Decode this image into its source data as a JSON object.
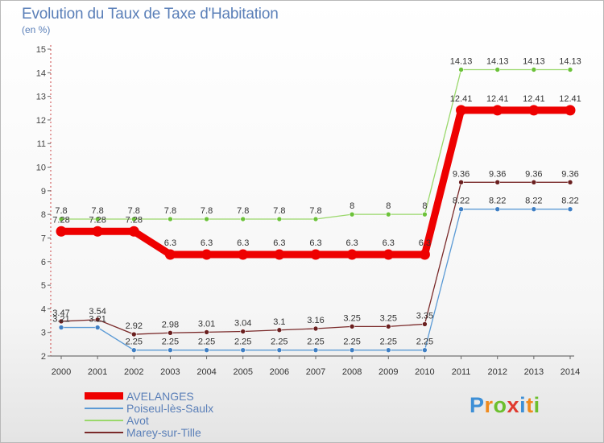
{
  "header": {
    "title": "Evolution du Taux de Taxe d'Habitation",
    "subtitle": "(en %)"
  },
  "logo": {
    "text": "Proxiti",
    "letters": [
      {
        "ch": "P",
        "color": "#3d8fd6"
      },
      {
        "ch": "r",
        "color": "#f08a1c"
      },
      {
        "ch": "o",
        "color": "#6cbf2e"
      },
      {
        "ch": "x",
        "color": "#e03a2f"
      },
      {
        "ch": "i",
        "color": "#3d8fd6"
      },
      {
        "ch": "t",
        "color": "#f08a1c"
      },
      {
        "ch": "i",
        "color": "#6cbf2e"
      }
    ]
  },
  "chart_data": {
    "type": "line",
    "x": [
      2000,
      2001,
      2002,
      2003,
      2004,
      2005,
      2006,
      2007,
      2008,
      2009,
      2010,
      2011,
      2012,
      2013,
      2014
    ],
    "ylim": [
      2,
      15
    ],
    "yticks": [
      2,
      3,
      4,
      5,
      6,
      7,
      8,
      9,
      10,
      11,
      12,
      13,
      14,
      15
    ],
    "grid": false,
    "legend_position": "bottom-left",
    "series": [
      {
        "name": "AVELANGES",
        "color": "#ee0000",
        "emphasis": true,
        "values": [
          7.28,
          7.28,
          7.28,
          6.3,
          6.3,
          6.3,
          6.3,
          6.3,
          6.3,
          6.3,
          6.3,
          12.41,
          12.41,
          12.41,
          12.41
        ],
        "labels": [
          "7.28",
          "7.28",
          "7.28",
          "6.3",
          "6.3",
          "6.3",
          "6.3",
          "6.3",
          "6.3",
          "6.3",
          "6.3",
          "12.41",
          "12.41",
          "12.41",
          "12.41"
        ]
      },
      {
        "name": "Poiseul-lès-Saulx",
        "color": "#5b9ad5",
        "marker_color": "#3f7fc4",
        "values": [
          3.21,
          3.21,
          2.25,
          2.25,
          2.25,
          2.25,
          2.25,
          2.25,
          2.25,
          2.25,
          2.25,
          8.22,
          8.22,
          8.22,
          8.22
        ],
        "labels": [
          "3.21",
          "3.21",
          "2.25",
          "2.25",
          "2.25",
          "2.25",
          "2.25",
          "2.25",
          "2.25",
          "2.25",
          "2.25",
          "8.22",
          "8.22",
          "8.22",
          "8.22"
        ]
      },
      {
        "name": "Avot",
        "color": "#9ad86b",
        "marker_color": "#6cc23a",
        "values": [
          7.8,
          7.8,
          7.8,
          7.8,
          7.8,
          7.8,
          7.8,
          7.8,
          8,
          8,
          8,
          14.13,
          14.13,
          14.13,
          14.13
        ],
        "labels": [
          "7.8",
          "7.8",
          "7.8",
          "7.8",
          "7.8",
          "7.8",
          "7.8",
          "7.8",
          "8",
          "8",
          "8",
          "14.13",
          "14.13",
          "14.13",
          "14.13"
        ]
      },
      {
        "name": "Marey-sur-Tille",
        "color": "#7a2a2a",
        "marker_color": "#6a1f1f",
        "values": [
          3.47,
          3.54,
          2.92,
          2.98,
          3.01,
          3.04,
          3.1,
          3.16,
          3.25,
          3.25,
          3.35,
          9.36,
          9.36,
          9.36,
          9.36
        ],
        "labels": [
          "3.47",
          "3.54",
          "2.92",
          "2.98",
          "3.01",
          "3.04",
          "3.1",
          "3.16",
          "3.25",
          "3.25",
          "3.35",
          "9.36",
          "9.36",
          "9.36",
          "9.36"
        ]
      }
    ]
  }
}
